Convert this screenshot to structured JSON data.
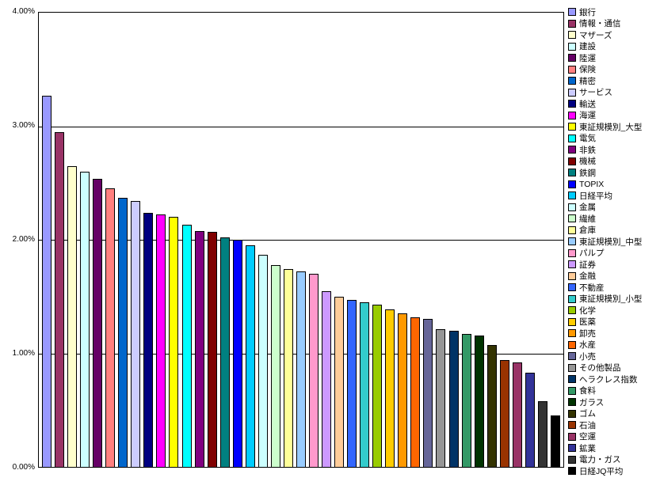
{
  "chart_data": {
    "type": "bar",
    "title": "",
    "xlabel": "",
    "ylabel": "",
    "ylim": [
      0,
      4
    ],
    "grid": true,
    "legend_position": "right",
    "yticks": [
      {
        "value": 4,
        "label": "4.00%"
      },
      {
        "value": 3,
        "label": "3.00%"
      },
      {
        "value": 2,
        "label": "2.00%"
      },
      {
        "value": 1,
        "label": "1.00%"
      },
      {
        "value": 0,
        "label": "0.00%"
      }
    ],
    "categories": [
      "銀行",
      "情報・通信",
      "マザーズ",
      "建設",
      "陸運",
      "保険",
      "精密",
      "サービス",
      "輸送",
      "海運",
      "東証規模別_大型",
      "電気",
      "非鉄",
      "機械",
      "鉄鋼",
      "TOPIX",
      "日経平均",
      "金属",
      "繊維",
      "倉庫",
      "東証規模別_中型",
      "パルプ",
      "証券",
      "金融",
      "不動産",
      "東証規模別_小型",
      "化学",
      "医薬",
      "卸売",
      "水産",
      "小売",
      "その他製品",
      "ヘラクレス指数",
      "食料",
      "ガラス",
      "ゴム",
      "石油",
      "空運",
      "鉱業",
      "電力・ガス",
      "日経JQ平均"
    ],
    "values": [
      3.27,
      2.95,
      2.65,
      2.6,
      2.54,
      2.45,
      2.37,
      2.34,
      2.24,
      2.22,
      2.2,
      2.13,
      2.08,
      2.07,
      2.02,
      2.0,
      1.95,
      1.87,
      1.78,
      1.74,
      1.72,
      1.7,
      1.55,
      1.5,
      1.47,
      1.45,
      1.43,
      1.39,
      1.35,
      1.32,
      1.3,
      1.21,
      1.2,
      1.17,
      1.16,
      1.07,
      0.94,
      0.92,
      0.83,
      0.58,
      0.45
    ],
    "colors": [
      "#9999FF",
      "#993366",
      "#FFFFCC",
      "#CCFFFF",
      "#660066",
      "#FF8080",
      "#0066CC",
      "#CCCCFF",
      "#000080",
      "#FF00FF",
      "#FFFF00",
      "#00FFFF",
      "#800080",
      "#800000",
      "#008080",
      "#0000FF",
      "#00CCFF",
      "#CCFFFF",
      "#CCFFCC",
      "#FFFF99",
      "#99CCFF",
      "#FF99CC",
      "#CC99FF",
      "#FFCC99",
      "#3366FF",
      "#33CCCC",
      "#99CC00",
      "#FFCC00",
      "#FF9900",
      "#FF6600",
      "#666699",
      "#969696",
      "#003366",
      "#339966",
      "#003300",
      "#333300",
      "#993300",
      "#993366",
      "#333399",
      "#333333",
      "#000000"
    ],
    "axis_color": "#000000",
    "background_color": "#FFFFFF"
  }
}
